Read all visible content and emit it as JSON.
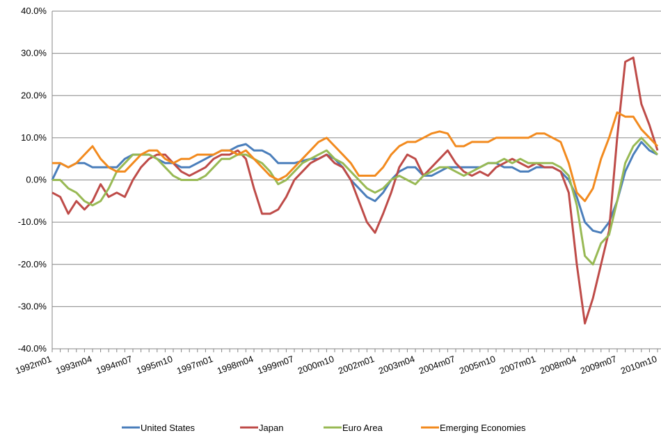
{
  "chart_data": {
    "type": "line",
    "categories": [
      "1992m01",
      null,
      null,
      null,
      null,
      "1993m04",
      null,
      null,
      null,
      null,
      "1994m07",
      null,
      null,
      null,
      null,
      "1995m10",
      null,
      null,
      null,
      null,
      "1997m01",
      null,
      null,
      null,
      null,
      "1998m04",
      null,
      null,
      null,
      null,
      "1999m07",
      null,
      null,
      null,
      null,
      "2000m10",
      null,
      null,
      null,
      null,
      "2002m01",
      null,
      null,
      null,
      null,
      "2003m04",
      null,
      null,
      null,
      null,
      "2004m07",
      null,
      null,
      null,
      null,
      "2005m10",
      null,
      null,
      null,
      null,
      "2007m01",
      null,
      null,
      null,
      null,
      "2008m04",
      null,
      null,
      null,
      null,
      "2009m07",
      null,
      null,
      null,
      null,
      "2010m10"
    ],
    "series": [
      {
        "name": "United States",
        "color": "#4a7ebb",
        "values": [
          0,
          4,
          3,
          4,
          4,
          3,
          3,
          3,
          3,
          5,
          6,
          6,
          6,
          5,
          4,
          4,
          3,
          3,
          4,
          5,
          6,
          7,
          7,
          8,
          8.5,
          7,
          7,
          6,
          4,
          4,
          4,
          4.5,
          5,
          5,
          6,
          5,
          3,
          0,
          -2,
          -4,
          -5,
          -3,
          0,
          2,
          3,
          3,
          1,
          1,
          2,
          3,
          3,
          3,
          3,
          3,
          4,
          4,
          3,
          3,
          2,
          2,
          3,
          3,
          3,
          2,
          0,
          -4,
          -10,
          -12,
          -12.5,
          -10,
          -5,
          2,
          6,
          9,
          7,
          6
        ]
      },
      {
        "name": "Japan",
        "color": "#be4b48",
        "values": [
          -3,
          -4,
          -8,
          -5,
          -7,
          -5,
          -1,
          -4,
          -3,
          -4,
          0,
          3,
          5,
          6,
          6,
          4,
          2,
          1,
          2,
          3,
          5,
          6,
          6,
          7,
          5,
          -2,
          -8,
          -8,
          -7,
          -4,
          0,
          2,
          4,
          5,
          6,
          4,
          3,
          0,
          -5,
          -10,
          -12.5,
          -8,
          -3,
          3,
          6,
          5,
          1,
          3,
          5,
          7,
          4,
          2,
          1,
          2,
          1,
          3,
          4,
          5,
          4,
          3,
          4,
          3,
          3,
          2,
          -3,
          -20,
          -34,
          -28,
          -20,
          -12,
          10,
          28,
          29,
          18,
          13,
          7
        ]
      },
      {
        "name": "Euro Area",
        "color": "#98b954",
        "values": [
          0,
          0,
          -2,
          -3,
          -5,
          -6,
          -5,
          -2,
          2,
          4,
          6,
          6,
          6,
          5,
          3,
          1,
          0,
          0,
          0,
          1,
          3,
          5,
          5,
          6,
          6,
          5,
          4,
          2,
          -1,
          0,
          2,
          4,
          5,
          6,
          7,
          5,
          4,
          2,
          0,
          -2,
          -3,
          -2,
          0,
          1,
          0,
          -1,
          1,
          2,
          3,
          3,
          2,
          1,
          2,
          3,
          4,
          4,
          5,
          4,
          5,
          4,
          4,
          4,
          4,
          3,
          1,
          -6,
          -18,
          -20,
          -15,
          -13,
          -5,
          4,
          8,
          10,
          8,
          6
        ]
      },
      {
        "name": "Emerging Economies",
        "color": "#f28a1e",
        "values": [
          4,
          4,
          3,
          4,
          6,
          8,
          5,
          3,
          2,
          2,
          4,
          6,
          7,
          7,
          5,
          4,
          5,
          5,
          6,
          6,
          6,
          7,
          7,
          6,
          7,
          5,
          3,
          1,
          0,
          1,
          3,
          5,
          7,
          9,
          10,
          8,
          6,
          4,
          1,
          1,
          1,
          3,
          6,
          8,
          9,
          9,
          10,
          11,
          11.5,
          11,
          8,
          8,
          9,
          9,
          9,
          10,
          10,
          10,
          10,
          10,
          11,
          11,
          10,
          9,
          4,
          -3,
          -5,
          -2,
          5,
          10,
          16,
          15,
          15,
          12,
          10,
          8
        ]
      }
    ],
    "ylim": [
      -40,
      40
    ],
    "yticks": [
      {
        "value": -40,
        "label": "-40.0%"
      },
      {
        "value": -30,
        "label": "-30.0%"
      },
      {
        "value": -20,
        "label": "-20.0%"
      },
      {
        "value": -10,
        "label": "-10.0%"
      },
      {
        "value": 0,
        "label": "0.0%"
      },
      {
        "value": 10,
        "label": "10.0%"
      },
      {
        "value": 20,
        "label": "20.0%"
      },
      {
        "value": 30,
        "label": "30.0%"
      },
      {
        "value": 40,
        "label": "40.0%"
      }
    ],
    "grid": true,
    "legend": "bottom"
  }
}
